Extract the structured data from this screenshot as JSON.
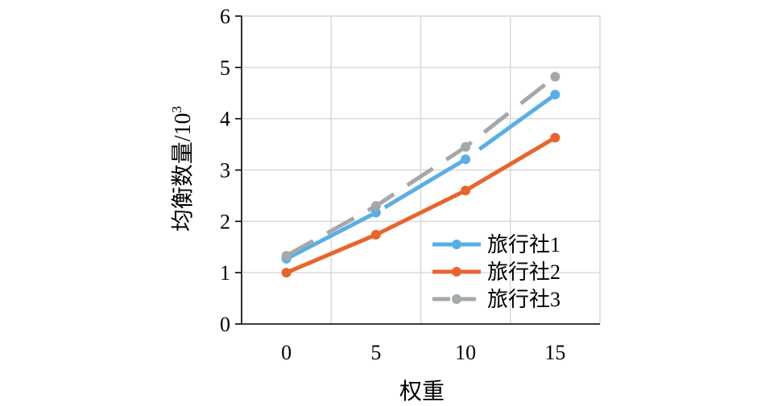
{
  "chart_data": {
    "type": "line",
    "xlabel": "权重",
    "ylabel_main": "均衡数量/10",
    "ylabel_sup": "3",
    "xlim": [
      -2.5,
      17.5
    ],
    "ylim": [
      0,
      6
    ],
    "xticks": [
      0,
      5,
      10,
      15
    ],
    "yticks": [
      0,
      1,
      2,
      3,
      4,
      5,
      6
    ],
    "x_gridlines": [
      2.5,
      7.5,
      12.5
    ],
    "grid": true,
    "legend_position": "bottom-right",
    "x": [
      0,
      5,
      10,
      15
    ],
    "series": [
      {
        "name": "旅行社1",
        "color": "#5aaee8",
        "dash": "solid-broken",
        "values": [
          1.27,
          2.17,
          3.21,
          4.47
        ]
      },
      {
        "name": "旅行社2",
        "color": "#e8642c",
        "dash": "solid",
        "values": [
          1.0,
          1.74,
          2.6,
          3.63
        ]
      },
      {
        "name": "旅行社3",
        "color": "#a3a8ab",
        "dash": "dashed",
        "values": [
          1.33,
          2.3,
          3.45,
          4.82
        ]
      }
    ]
  }
}
